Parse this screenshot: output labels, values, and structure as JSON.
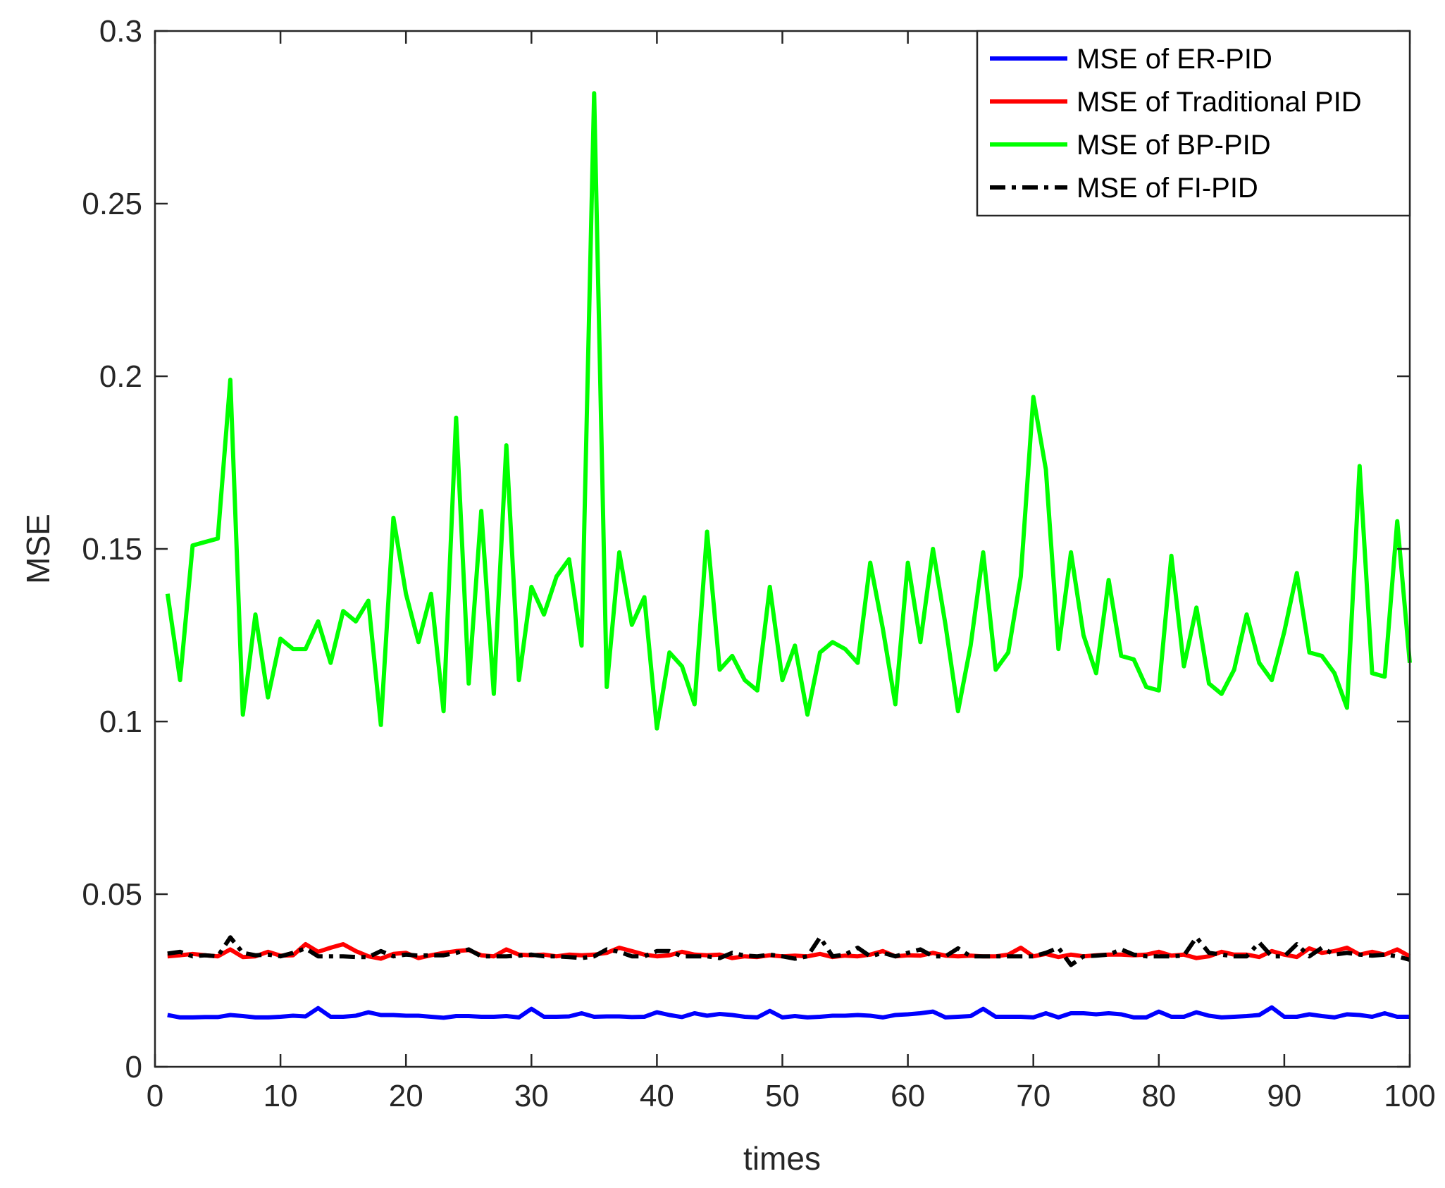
{
  "chart_data": {
    "type": "line",
    "title": "",
    "xlabel": "times",
    "ylabel": "MSE",
    "xlim": [
      0,
      100
    ],
    "ylim": [
      0,
      0.3
    ],
    "xticks": [
      0,
      10,
      20,
      30,
      40,
      50,
      60,
      70,
      80,
      90,
      100
    ],
    "xtick_labels": [
      "0",
      "10",
      "20",
      "30",
      "40",
      "50",
      "60",
      "70",
      "80",
      "90",
      "100"
    ],
    "yticks": [
      0,
      0.05,
      0.1,
      0.15,
      0.2,
      0.25,
      0.3
    ],
    "ytick_labels": [
      "0",
      "0.05",
      "0.1",
      "0.15",
      "0.2",
      "0.25",
      "0.3"
    ],
    "grid": false,
    "legend_position": "top-right",
    "x": [
      1,
      2,
      3,
      4,
      5,
      6,
      7,
      8,
      9,
      10,
      11,
      12,
      13,
      14,
      15,
      16,
      17,
      18,
      19,
      20,
      21,
      22,
      23,
      24,
      25,
      26,
      27,
      28,
      29,
      30,
      31,
      32,
      33,
      34,
      35,
      36,
      37,
      38,
      39,
      40,
      41,
      42,
      43,
      44,
      45,
      46,
      47,
      48,
      49,
      50,
      51,
      52,
      53,
      54,
      55,
      56,
      57,
      58,
      59,
      60,
      61,
      62,
      63,
      64,
      65,
      66,
      67,
      68,
      69,
      70,
      71,
      72,
      73,
      74,
      75,
      76,
      77,
      78,
      79,
      80,
      81,
      82,
      83,
      84,
      85,
      86,
      87,
      88,
      89,
      90,
      91,
      92,
      93,
      94,
      95,
      96,
      97,
      98,
      99,
      100
    ],
    "series": [
      {
        "name": "MSE of ER-PID",
        "color": "#0000ff",
        "style": "solid",
        "values": [
          0.015,
          0.0143,
          0.0143,
          0.0144,
          0.0144,
          0.015,
          0.0147,
          0.0143,
          0.0143,
          0.0145,
          0.0148,
          0.0146,
          0.017,
          0.0145,
          0.0145,
          0.0148,
          0.0158,
          0.015,
          0.015,
          0.0148,
          0.0148,
          0.0145,
          0.0142,
          0.0147,
          0.0147,
          0.0145,
          0.0145,
          0.0147,
          0.0143,
          0.0168,
          0.0145,
          0.0145,
          0.0146,
          0.0155,
          0.0145,
          0.0146,
          0.0146,
          0.0144,
          0.0145,
          0.0158,
          0.015,
          0.0144,
          0.0155,
          0.0148,
          0.0153,
          0.015,
          0.0145,
          0.0143,
          0.0162,
          0.0143,
          0.0147,
          0.0143,
          0.0145,
          0.0148,
          0.0148,
          0.015,
          0.0148,
          0.0143,
          0.015,
          0.0152,
          0.0155,
          0.016,
          0.0143,
          0.0145,
          0.0147,
          0.0168,
          0.0145,
          0.0145,
          0.0145,
          0.0143,
          0.0155,
          0.0143,
          0.0155,
          0.0155,
          0.0152,
          0.0155,
          0.0152,
          0.0143,
          0.0143,
          0.016,
          0.0145,
          0.0145,
          0.0158,
          0.0148,
          0.0143,
          0.0145,
          0.0147,
          0.015,
          0.0172,
          0.0145,
          0.0145,
          0.0152,
          0.0147,
          0.0143,
          0.0152,
          0.015,
          0.0145,
          0.0155,
          0.0145,
          0.0145
        ]
      },
      {
        "name": "MSE of Traditional PID",
        "color": "#ff0000",
        "style": "solid",
        "values": [
          0.032,
          0.0323,
          0.0327,
          0.0323,
          0.032,
          0.034,
          0.0318,
          0.032,
          0.0333,
          0.0322,
          0.0323,
          0.0355,
          0.0333,
          0.0345,
          0.0355,
          0.0335,
          0.032,
          0.0313,
          0.0327,
          0.033,
          0.0315,
          0.0323,
          0.033,
          0.0335,
          0.0338,
          0.0323,
          0.032,
          0.034,
          0.0325,
          0.0323,
          0.0325,
          0.032,
          0.0325,
          0.0323,
          0.0325,
          0.033,
          0.0345,
          0.0335,
          0.0325,
          0.032,
          0.0323,
          0.0333,
          0.0325,
          0.0323,
          0.0325,
          0.0315,
          0.032,
          0.0318,
          0.0323,
          0.032,
          0.0322,
          0.032,
          0.0327,
          0.0318,
          0.0322,
          0.032,
          0.0325,
          0.0335,
          0.032,
          0.0323,
          0.0322,
          0.033,
          0.0322,
          0.032,
          0.0322,
          0.032,
          0.032,
          0.0325,
          0.0345,
          0.032,
          0.0327,
          0.0318,
          0.0325,
          0.032,
          0.0323,
          0.0325,
          0.0325,
          0.0323,
          0.0325,
          0.0333,
          0.0322,
          0.0325,
          0.0315,
          0.032,
          0.0333,
          0.0325,
          0.0325,
          0.0318,
          0.0335,
          0.0325,
          0.0318,
          0.0343,
          0.033,
          0.0335,
          0.0345,
          0.0325,
          0.0333,
          0.0325,
          0.034,
          0.032
        ]
      },
      {
        "name": "MSE of BP-PID",
        "color": "#00ff00",
        "style": "solid",
        "values": [
          0.137,
          0.112,
          0.151,
          0.152,
          0.153,
          0.199,
          0.102,
          0.131,
          0.107,
          0.124,
          0.121,
          0.121,
          0.129,
          0.117,
          0.132,
          0.129,
          0.135,
          0.099,
          0.159,
          0.137,
          0.123,
          0.137,
          0.103,
          0.188,
          0.111,
          0.161,
          0.108,
          0.18,
          0.112,
          0.139,
          0.131,
          0.142,
          0.147,
          0.122,
          0.282,
          0.11,
          0.149,
          0.128,
          0.136,
          0.098,
          0.12,
          0.116,
          0.105,
          0.155,
          0.115,
          0.119,
          0.112,
          0.109,
          0.139,
          0.112,
          0.122,
          0.102,
          0.12,
          0.123,
          0.121,
          0.117,
          0.146,
          0.127,
          0.105,
          0.146,
          0.123,
          0.15,
          0.128,
          0.103,
          0.122,
          0.149,
          0.115,
          0.12,
          0.142,
          0.194,
          0.173,
          0.121,
          0.149,
          0.125,
          0.114,
          0.141,
          0.119,
          0.118,
          0.11,
          0.109,
          0.148,
          0.116,
          0.133,
          0.111,
          0.108,
          0.115,
          0.131,
          0.117,
          0.112,
          0.126,
          0.143,
          0.12,
          0.119,
          0.114,
          0.104,
          0.174,
          0.114,
          0.113,
          0.158,
          0.117
        ]
      },
      {
        "name": "MSE of FI-PID",
        "color": "#000000",
        "style": "dashdot",
        "values": [
          0.0328,
          0.0333,
          0.032,
          0.0323,
          0.032,
          0.0375,
          0.033,
          0.0323,
          0.0325,
          0.032,
          0.033,
          0.0343,
          0.032,
          0.032,
          0.032,
          0.0318,
          0.0318,
          0.0335,
          0.032,
          0.0325,
          0.0322,
          0.0323,
          0.0323,
          0.033,
          0.034,
          0.032,
          0.032,
          0.032,
          0.0322,
          0.0325,
          0.032,
          0.032,
          0.0318,
          0.0315,
          0.032,
          0.034,
          0.0333,
          0.032,
          0.032,
          0.0335,
          0.0335,
          0.032,
          0.032,
          0.032,
          0.0315,
          0.033,
          0.0322,
          0.032,
          0.0325,
          0.032,
          0.0313,
          0.032,
          0.0375,
          0.032,
          0.0325,
          0.0345,
          0.032,
          0.033,
          0.032,
          0.033,
          0.034,
          0.032,
          0.032,
          0.0343,
          0.032,
          0.032,
          0.032,
          0.032,
          0.032,
          0.032,
          0.033,
          0.0345,
          0.0295,
          0.032,
          0.0322,
          0.0325,
          0.034,
          0.0325,
          0.032,
          0.032,
          0.032,
          0.0322,
          0.0375,
          0.033,
          0.0325,
          0.032,
          0.032,
          0.036,
          0.032,
          0.032,
          0.0355,
          0.032,
          0.0345,
          0.0325,
          0.033,
          0.0325,
          0.0322,
          0.0325,
          0.032,
          0.031
        ]
      }
    ]
  }
}
